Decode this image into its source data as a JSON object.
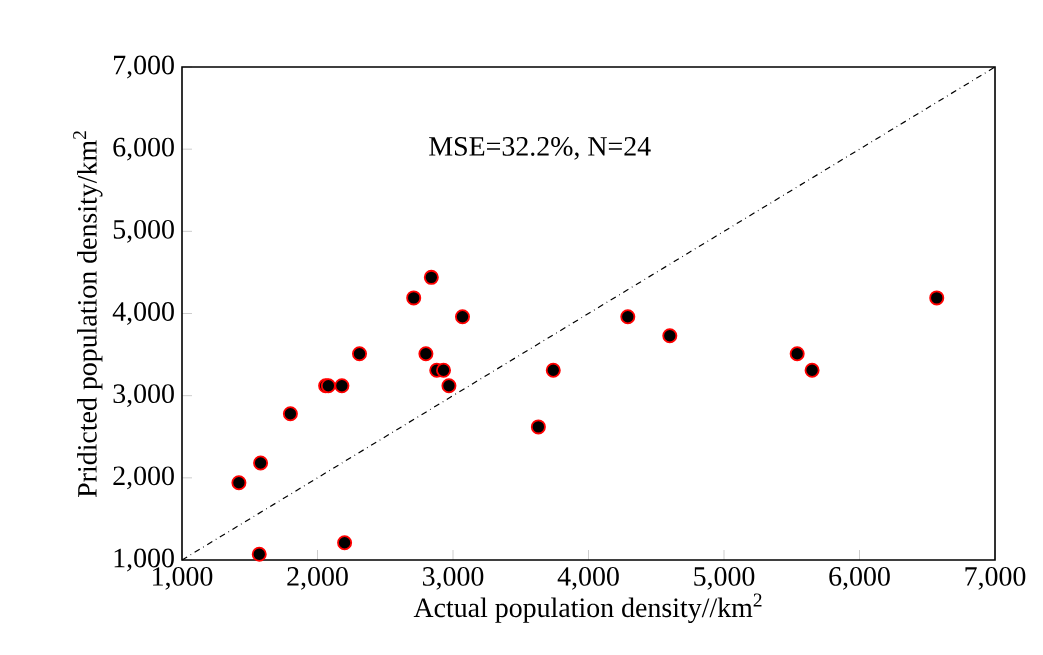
{
  "chart_data": {
    "type": "scatter",
    "xlabel": "Actual population density//km$^{2}$",
    "ylabel": "Pridicted population density/km$^{2}$",
    "annotations": [
      "MSE=32.2%, N=24"
    ],
    "xlim": [
      1000,
      7000
    ],
    "ylim": [
      1000,
      7000
    ],
    "xticks": [
      {
        "value": 1000,
        "label": "1,000"
      },
      {
        "value": 2000,
        "label": "2,000"
      },
      {
        "value": 3000,
        "label": "3,000"
      },
      {
        "value": 4000,
        "label": "4,000"
      },
      {
        "value": 5000,
        "label": "5,000"
      },
      {
        "value": 6000,
        "label": "6,000"
      },
      {
        "value": 7000,
        "label": "7,000"
      }
    ],
    "yticks": [
      {
        "value": 1000,
        "label": "1,000"
      },
      {
        "value": 2000,
        "label": "2,000"
      },
      {
        "value": 3000,
        "label": "3,000"
      },
      {
        "value": 4000,
        "label": "4,000"
      },
      {
        "value": 5000,
        "label": "5,000"
      },
      {
        "value": 6000,
        "label": "6,000"
      },
      {
        "value": 7000,
        "label": "7,000"
      }
    ],
    "grid": false,
    "series": [
      {
        "color": "#000000",
        "marker": "circle",
        "x": [
          1420,
          1580,
          1800,
          1570,
          2060,
          2080,
          2180,
          2310,
          2200,
          2710,
          2840,
          3070,
          2800,
          2880,
          2930,
          2970,
          3630,
          3740,
          4290,
          4600,
          5540,
          5650,
          6570
        ],
        "values": [
          1940,
          2180,
          2780,
          1070,
          3120,
          3120,
          3120,
          3510,
          1210,
          4190,
          4440,
          3960,
          3510,
          3310,
          3310,
          3120,
          2620,
          3310,
          3960,
          3730,
          3510,
          3310,
          4190
        ]
      },
      {
        "type": "line",
        "color": "#000000",
        "line_style": "dashdot",
        "marker": "none",
        "x": [
          1000,
          7000
        ],
        "values": [
          1000,
          7000
        ]
      }
    ]
  }
}
